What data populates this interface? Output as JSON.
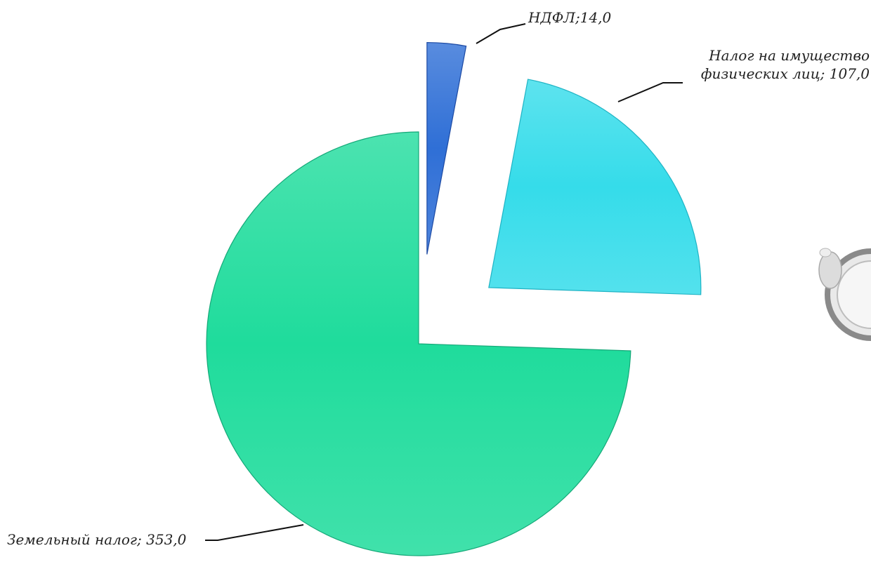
{
  "chart_data": {
    "type": "pie",
    "categories": [
      "НДФЛ",
      "Налог на имущество физических лиц",
      "Земельный налог"
    ],
    "values": [
      14.0,
      107.0,
      353.0
    ],
    "slices": [
      {
        "label_lines": [
          "НДФЛ;14,0"
        ],
        "color": "#2f6fd6",
        "edge": "#1d4aa3",
        "exploded": true
      },
      {
        "label_lines": [
          "Налог на имущество",
          "физических лиц; 107,0"
        ],
        "color": "#35dcea",
        "edge": "#1fb3c4",
        "exploded": true
      },
      {
        "label_lines": [
          "Земельный налог; 353,0"
        ],
        "color": "#1fdc9c",
        "edge": "#15a878",
        "exploded": false
      }
    ],
    "start_angle_deg": 0,
    "direction": "clockwise",
    "legend": "none",
    "data_labels": "category; value, with leader lines"
  }
}
